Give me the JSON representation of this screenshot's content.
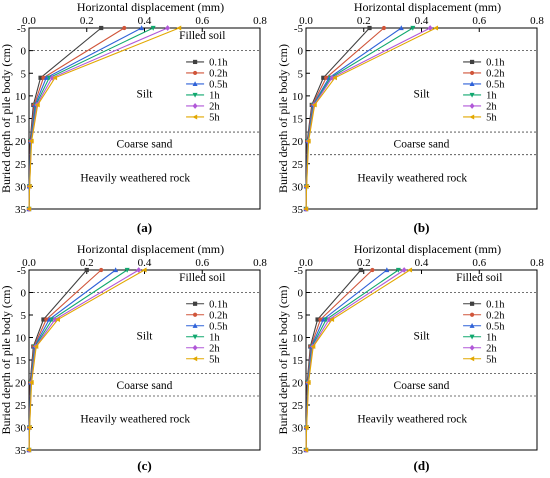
{
  "colors": {
    "0.1h": "#404040",
    "0.2h": "#d0553a",
    "0.5h": "#2f62d8",
    "1h": "#11a86f",
    "2h": "#b158d8",
    "5h": "#e2a800"
  },
  "chart_data": [
    {
      "type": "line",
      "panel_label": "(a)",
      "title": "Horizontal displacement (mm)",
      "xlabel": "Horizontal displacement (mm)",
      "ylabel": "Buried depth of pile body (cm)",
      "xlim": [
        0,
        0.8
      ],
      "ylim": [
        -5,
        35
      ],
      "x_ticks": [
        "0.0",
        "0.2",
        "0.4",
        "0.6",
        "0.8"
      ],
      "y_ticks": [
        "-5",
        "0",
        "5",
        "10",
        "15",
        "20",
        "25",
        "30",
        "35"
      ],
      "depths": [
        -5,
        6,
        12,
        20,
        30,
        35
      ],
      "series": [
        {
          "name": "0.1h",
          "values": [
            0.25,
            0.04,
            0.015,
            0.004,
            0.001,
            0.0
          ]
        },
        {
          "name": "0.2h",
          "values": [
            0.33,
            0.05,
            0.018,
            0.005,
            0.001,
            0.0
          ]
        },
        {
          "name": "0.5h",
          "values": [
            0.39,
            0.06,
            0.021,
            0.006,
            0.001,
            0.0
          ]
        },
        {
          "name": "1h",
          "values": [
            0.43,
            0.07,
            0.024,
            0.007,
            0.002,
            0.0
          ]
        },
        {
          "name": "2h",
          "values": [
            0.48,
            0.08,
            0.027,
            0.008,
            0.002,
            0.0
          ]
        },
        {
          "name": "5h",
          "values": [
            0.52,
            0.09,
            0.03,
            0.009,
            0.002,
            0.0
          ]
        }
      ],
      "layers": [
        {
          "label": "Filled soil",
          "y": -3.5
        },
        {
          "label": "Silt",
          "y": 9.5
        },
        {
          "label": "Coarse sand",
          "y": 20.5
        },
        {
          "label": "Heavily weathered rock",
          "y": 28
        }
      ],
      "boundaries": [
        0,
        18,
        23
      ],
      "legend": [
        "0.1h",
        "0.2h",
        "0.5h",
        "1h",
        "2h",
        "5h"
      ]
    },
    {
      "type": "line",
      "panel_label": "(b)",
      "title": "Horizontal displacement (mm)",
      "xlabel": "Horizontal displacement (mm)",
      "ylabel": "Buried depth of pile body (cm)",
      "xlim": [
        0,
        0.8
      ],
      "ylim": [
        -5,
        35
      ],
      "x_ticks": [
        "0.0",
        "0.2",
        "0.4",
        "0.6",
        "0.8"
      ],
      "y_ticks": [
        "-5",
        "0",
        "5",
        "10",
        "15",
        "20",
        "25",
        "30",
        "35"
      ],
      "depths": [
        -5,
        6,
        12,
        20,
        30,
        35
      ],
      "series": [
        {
          "name": "0.1h",
          "values": [
            0.22,
            0.06,
            0.02,
            0.004,
            0.001,
            0.0
          ]
        },
        {
          "name": "0.2h",
          "values": [
            0.27,
            0.07,
            0.022,
            0.005,
            0.001,
            0.0
          ]
        },
        {
          "name": "0.5h",
          "values": [
            0.33,
            0.08,
            0.024,
            0.006,
            0.001,
            0.0
          ]
        },
        {
          "name": "1h",
          "values": [
            0.37,
            0.085,
            0.026,
            0.007,
            0.002,
            0.0
          ]
        },
        {
          "name": "2h",
          "values": [
            0.43,
            0.09,
            0.028,
            0.008,
            0.002,
            0.0
          ]
        },
        {
          "name": "5h",
          "values": [
            0.45,
            0.1,
            0.03,
            0.009,
            0.002,
            0.0
          ]
        }
      ],
      "layers": [
        {
          "label": "Silt",
          "y": 9.5
        },
        {
          "label": "Coarse sand",
          "y": 20.5
        },
        {
          "label": "Heavily weathered rock",
          "y": 28
        }
      ],
      "boundaries": [
        0,
        18,
        23
      ],
      "legend": [
        "0.1h",
        "0.2h",
        "0.5h",
        "1h",
        "2h",
        "5h"
      ]
    },
    {
      "type": "line",
      "panel_label": "(c)",
      "title": "Horizontal displacement (mm)",
      "xlabel": "Horizontal displacement (mm)",
      "ylabel": "Buried depth of pile body (cm)",
      "xlim": [
        0,
        0.8
      ],
      "ylim": [
        -5,
        35
      ],
      "x_ticks": [
        "0.0",
        "0.2",
        "0.4",
        "0.6",
        "0.8"
      ],
      "y_ticks": [
        "-5",
        "0",
        "5",
        "10",
        "15",
        "20",
        "25",
        "30",
        "35"
      ],
      "depths": [
        -5,
        6,
        12,
        20,
        30,
        35
      ],
      "series": [
        {
          "name": "0.1h",
          "values": [
            0.2,
            0.05,
            0.015,
            0.004,
            0.001,
            0.0
          ]
        },
        {
          "name": "0.2h",
          "values": [
            0.25,
            0.06,
            0.017,
            0.005,
            0.001,
            0.0
          ]
        },
        {
          "name": "0.5h",
          "values": [
            0.3,
            0.07,
            0.019,
            0.006,
            0.001,
            0.0
          ]
        },
        {
          "name": "1h",
          "values": [
            0.34,
            0.08,
            0.021,
            0.007,
            0.002,
            0.0
          ]
        },
        {
          "name": "2h",
          "values": [
            0.38,
            0.09,
            0.023,
            0.008,
            0.002,
            0.0
          ]
        },
        {
          "name": "5h",
          "values": [
            0.4,
            0.1,
            0.025,
            0.009,
            0.002,
            0.0
          ]
        }
      ],
      "layers": [
        {
          "label": "Filled soil",
          "y": -3.5
        },
        {
          "label": "Silt",
          "y": 9.5
        },
        {
          "label": "Coarse sand",
          "y": 20.5
        },
        {
          "label": "Heavily weathered rock",
          "y": 28
        }
      ],
      "boundaries": [
        0,
        18,
        23
      ],
      "legend": [
        "0.1h",
        "0.2h",
        "0.5h",
        "1h",
        "2h",
        "5h"
      ]
    },
    {
      "type": "line",
      "panel_label": "(d)",
      "title": "Horizontal displacement (mm)",
      "xlabel": "Horizontal displacement (mm)",
      "ylabel": "Buried depth of pile body (cm)",
      "xlim": [
        0,
        0.8
      ],
      "ylim": [
        -5,
        35
      ],
      "x_ticks": [
        "0.0",
        "0.2",
        "0.4",
        "0.6",
        "0.8"
      ],
      "y_ticks": [
        "-5",
        "0",
        "5",
        "10",
        "15",
        "20",
        "25",
        "30",
        "35"
      ],
      "depths": [
        -5,
        6,
        12,
        20,
        30,
        35
      ],
      "series": [
        {
          "name": "0.1h",
          "values": [
            0.19,
            0.04,
            0.015,
            0.004,
            0.001,
            0.0
          ]
        },
        {
          "name": "0.2h",
          "values": [
            0.23,
            0.05,
            0.017,
            0.005,
            0.001,
            0.0
          ]
        },
        {
          "name": "0.5h",
          "values": [
            0.28,
            0.06,
            0.019,
            0.006,
            0.001,
            0.0
          ]
        },
        {
          "name": "1h",
          "values": [
            0.32,
            0.07,
            0.021,
            0.007,
            0.002,
            0.0
          ]
        },
        {
          "name": "2h",
          "values": [
            0.34,
            0.08,
            0.023,
            0.008,
            0.002,
            0.0
          ]
        },
        {
          "name": "5h",
          "values": [
            0.36,
            0.09,
            0.025,
            0.009,
            0.002,
            0.0
          ]
        }
      ],
      "layers": [
        {
          "label": "Filled soil",
          "y": -3.5
        },
        {
          "label": "Silt",
          "y": 9.5
        },
        {
          "label": "Coarse sand",
          "y": 20.5
        },
        {
          "label": "Heavily weathered rock",
          "y": 28
        }
      ],
      "boundaries": [
        0,
        18,
        23
      ],
      "legend": [
        "0.1h",
        "0.2h",
        "0.5h",
        "1h",
        "2h",
        "5h"
      ]
    }
  ]
}
